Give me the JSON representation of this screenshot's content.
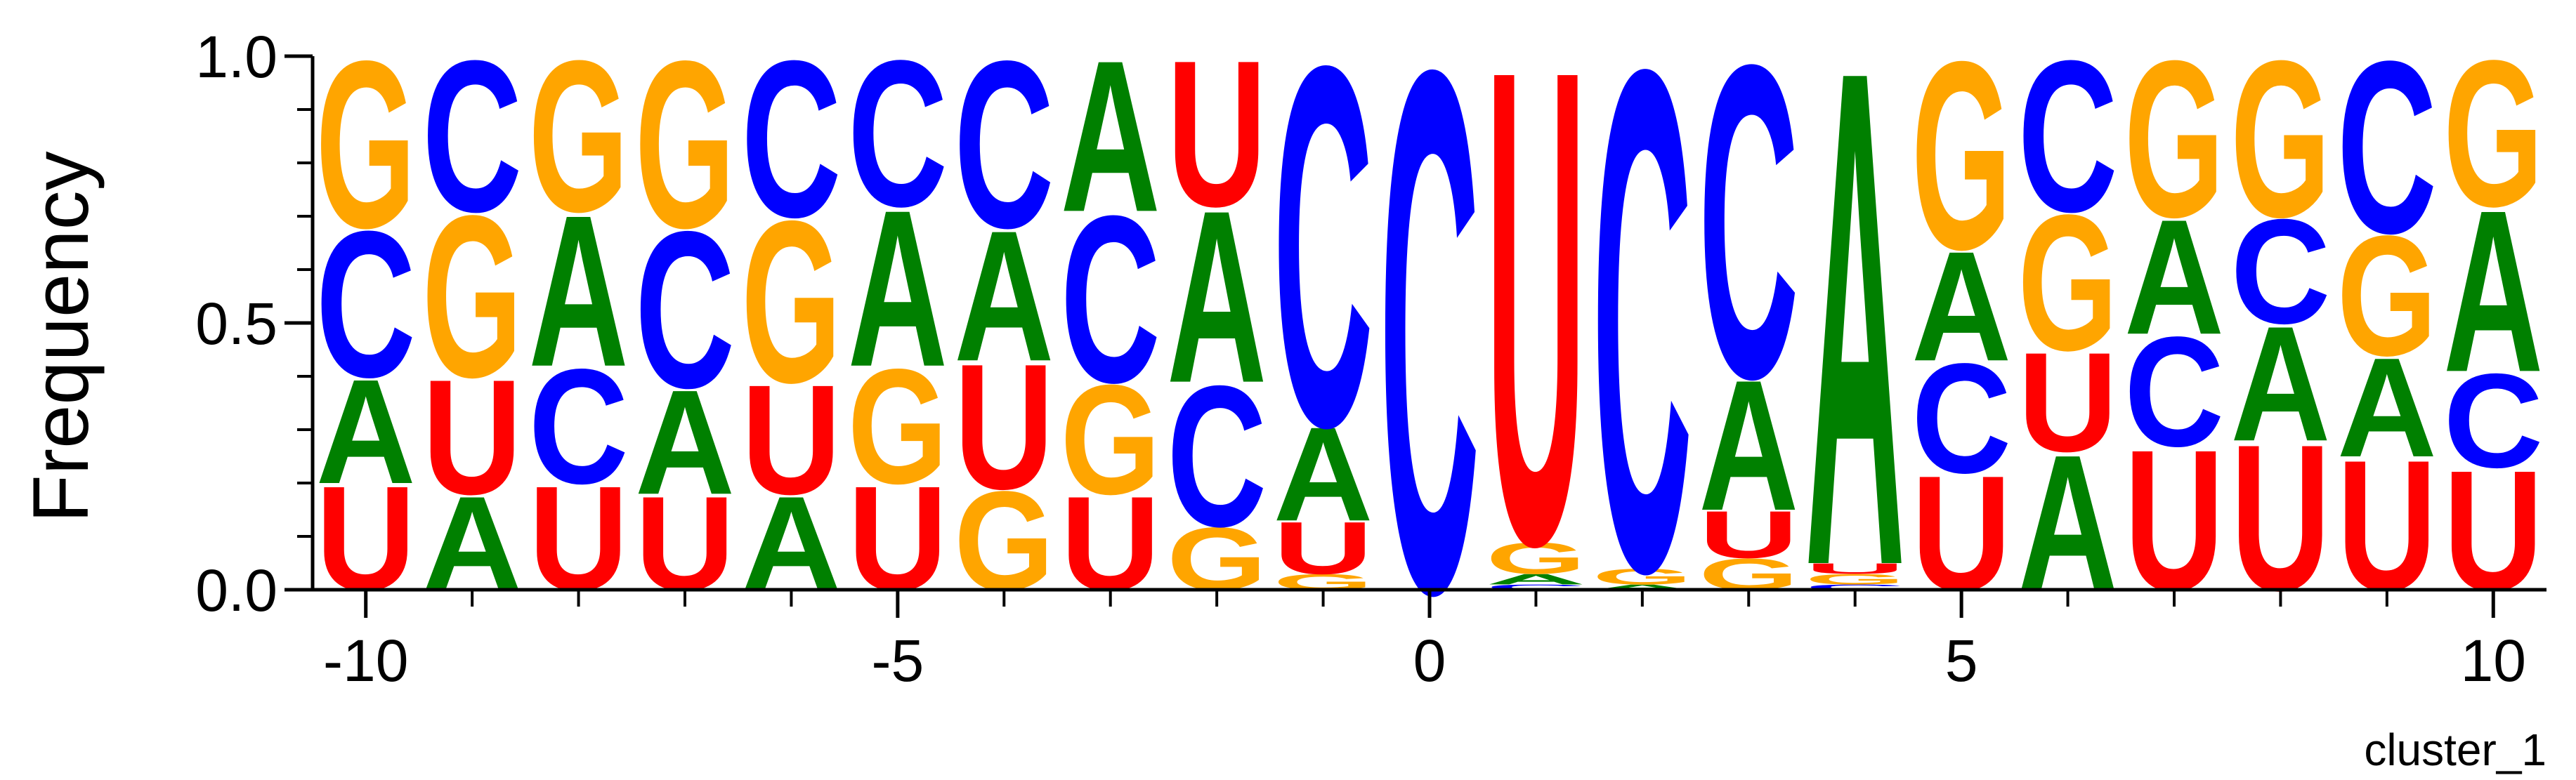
{
  "chart_data": {
    "type": "sequence-logo",
    "ylabel": "Frequency",
    "caption": "cluster_1",
    "ylim": [
      0,
      1
    ],
    "xlim": [
      -10.5,
      10.5
    ],
    "y_ticks": [
      "0.0",
      "0.5",
      "1.0"
    ],
    "y_tick_values": [
      0,
      0.5,
      1
    ],
    "y_minor_tick_values": [
      0.1,
      0.2,
      0.3,
      0.4,
      0.6,
      0.7,
      0.8,
      0.9
    ],
    "x_ticks": [
      "-10",
      "-5",
      "0",
      "5",
      "10"
    ],
    "x_tick_values": [
      -10,
      -5,
      0,
      5,
      10
    ],
    "colors": {
      "A": "#008000",
      "C": "#0000ff",
      "G": "#ffa500",
      "U": "#ff0000"
    },
    "positions": [
      {
        "x": -10,
        "stack": [
          [
            "U",
            0.2
          ],
          [
            "A",
            0.2
          ],
          [
            "C",
            0.28
          ],
          [
            "G",
            0.32
          ]
        ]
      },
      {
        "x": -9,
        "stack": [
          [
            "A",
            0.18
          ],
          [
            "U",
            0.22
          ],
          [
            "G",
            0.31
          ],
          [
            "C",
            0.29
          ]
        ]
      },
      {
        "x": -8,
        "stack": [
          [
            "U",
            0.2
          ],
          [
            "C",
            0.22
          ],
          [
            "A",
            0.29
          ],
          [
            "G",
            0.29
          ]
        ]
      },
      {
        "x": -7,
        "stack": [
          [
            "U",
            0.18
          ],
          [
            "A",
            0.2
          ],
          [
            "C",
            0.3
          ],
          [
            "G",
            0.32
          ]
        ]
      },
      {
        "x": -6,
        "stack": [
          [
            "A",
            0.18
          ],
          [
            "U",
            0.21
          ],
          [
            "G",
            0.31
          ],
          [
            "C",
            0.3
          ]
        ]
      },
      {
        "x": -5,
        "stack": [
          [
            "U",
            0.2
          ],
          [
            "G",
            0.22
          ],
          [
            "A",
            0.3
          ],
          [
            "C",
            0.28
          ]
        ]
      },
      {
        "x": -4,
        "stack": [
          [
            "G",
            0.19
          ],
          [
            "U",
            0.24
          ],
          [
            "A",
            0.25
          ],
          [
            "C",
            0.32
          ]
        ]
      },
      {
        "x": -3,
        "stack": [
          [
            "U",
            0.18
          ],
          [
            "G",
            0.21
          ],
          [
            "C",
            0.32
          ],
          [
            "A",
            0.29
          ]
        ]
      },
      {
        "x": -2,
        "stack": [
          [
            "G",
            0.12
          ],
          [
            "C",
            0.27
          ],
          [
            "A",
            0.33
          ],
          [
            "U",
            0.28
          ]
        ]
      },
      {
        "x": -1,
        "stack": [
          [
            "G",
            0.03
          ],
          [
            "U",
            0.1
          ],
          [
            "A",
            0.18
          ],
          [
            "C",
            0.69
          ]
        ]
      },
      {
        "x": 0,
        "stack": [
          [
            "C",
            1.0
          ]
        ]
      },
      {
        "x": 1,
        "stack": [
          [
            "C",
            0.01
          ],
          [
            "A",
            0.02
          ],
          [
            "G",
            0.06
          ],
          [
            "U",
            0.91
          ]
        ]
      },
      {
        "x": 2,
        "stack": [
          [
            "A",
            0.01
          ],
          [
            "G",
            0.03
          ],
          [
            "C",
            0.96
          ]
        ]
      },
      {
        "x": 3,
        "stack": [
          [
            "G",
            0.06
          ],
          [
            "U",
            0.09
          ],
          [
            "A",
            0.25
          ],
          [
            "C",
            0.6
          ]
        ]
      },
      {
        "x": 4,
        "stack": [
          [
            "C",
            0.01
          ],
          [
            "G",
            0.02
          ],
          [
            "U",
            0.02
          ],
          [
            "A",
            0.95
          ]
        ]
      },
      {
        "x": 5,
        "stack": [
          [
            "U",
            0.22
          ],
          [
            "C",
            0.21
          ],
          [
            "A",
            0.21
          ],
          [
            "G",
            0.36
          ]
        ]
      },
      {
        "x": 6,
        "stack": [
          [
            "A",
            0.26
          ],
          [
            "U",
            0.19
          ],
          [
            "G",
            0.26
          ],
          [
            "C",
            0.29
          ]
        ]
      },
      {
        "x": 7,
        "stack": [
          [
            "U",
            0.27
          ],
          [
            "C",
            0.21
          ],
          [
            "A",
            0.22
          ],
          [
            "G",
            0.3
          ]
        ]
      },
      {
        "x": 8,
        "stack": [
          [
            "U",
            0.28
          ],
          [
            "A",
            0.22
          ],
          [
            "C",
            0.2
          ],
          [
            "G",
            0.3
          ]
        ]
      },
      {
        "x": 9,
        "stack": [
          [
            "U",
            0.25
          ],
          [
            "A",
            0.19
          ],
          [
            "G",
            0.23
          ],
          [
            "C",
            0.33
          ]
        ]
      },
      {
        "x": 10,
        "stack": [
          [
            "U",
            0.23
          ],
          [
            "C",
            0.18
          ],
          [
            "A",
            0.31
          ],
          [
            "G",
            0.28
          ]
        ]
      }
    ]
  }
}
